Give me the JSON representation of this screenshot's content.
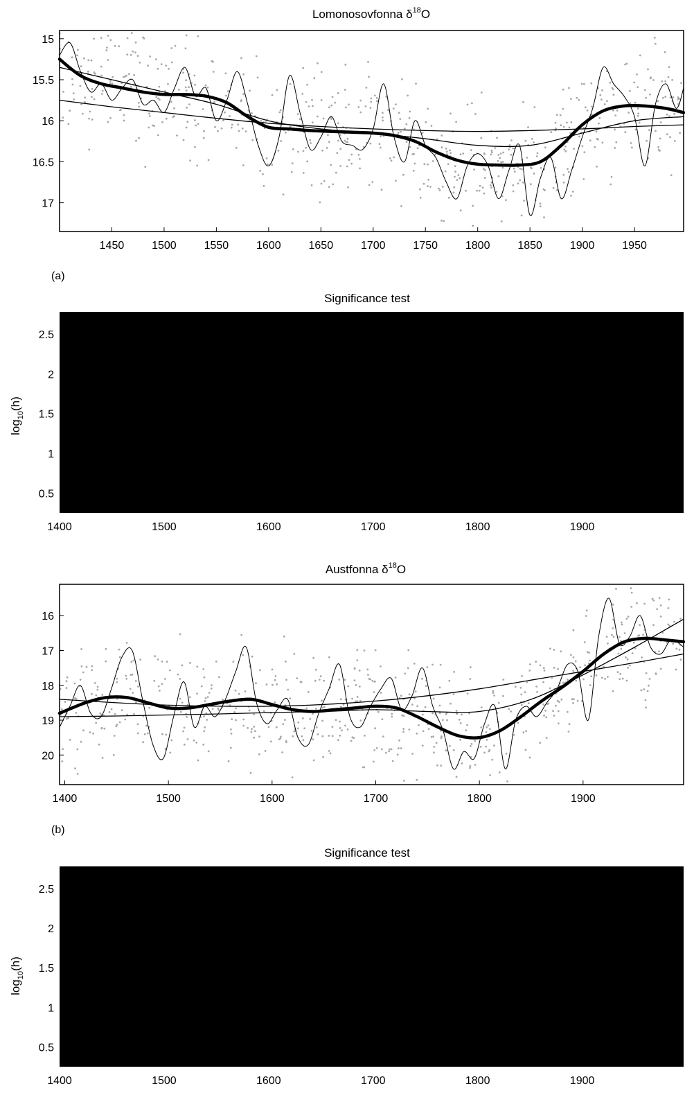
{
  "chart_data": [
    {
      "type": "scatter",
      "title": "Lomonosovfonna δ",
      "title_sup": "18",
      "title_suffix": "O",
      "xlim": [
        1400,
        1997
      ],
      "ylim": [
        17.35,
        14.9
      ],
      "y_reversed": true,
      "xticks": [
        1450,
        1500,
        1550,
        1600,
        1650,
        1700,
        1750,
        1800,
        1850,
        1900,
        1950
      ],
      "yticks": [
        15,
        15.5,
        16,
        16.5,
        17
      ],
      "series": [
        {
          "style": "thick",
          "x": [
            1400,
            1420,
            1440,
            1460,
            1480,
            1500,
            1520,
            1540,
            1560,
            1580,
            1600,
            1620,
            1640,
            1660,
            1680,
            1700,
            1720,
            1740,
            1760,
            1780,
            1800,
            1820,
            1840,
            1860,
            1880,
            1900,
            1920,
            1940,
            1960,
            1980,
            1997
          ],
          "y": [
            15.25,
            15.45,
            15.55,
            15.6,
            15.65,
            15.68,
            15.68,
            15.7,
            15.78,
            15.95,
            16.08,
            16.1,
            16.12,
            16.13,
            16.14,
            16.15,
            16.18,
            16.25,
            16.38,
            16.48,
            16.53,
            16.54,
            16.54,
            16.5,
            16.3,
            16.05,
            15.88,
            15.82,
            15.82,
            15.85,
            15.9
          ]
        },
        {
          "style": "thin",
          "x": [
            1400,
            1450,
            1500,
            1550,
            1600,
            1650,
            1700,
            1750,
            1800,
            1850,
            1900,
            1950,
            1997
          ],
          "y": [
            15.35,
            15.5,
            15.65,
            15.8,
            16.0,
            16.1,
            16.15,
            16.22,
            16.3,
            16.3,
            16.15,
            16.0,
            15.95
          ]
        },
        {
          "style": "thin",
          "x": [
            1400,
            1450,
            1500,
            1550,
            1600,
            1650,
            1700,
            1750,
            1800,
            1850,
            1900,
            1950,
            1997
          ],
          "y": [
            15.75,
            15.83,
            15.9,
            15.97,
            16.03,
            16.07,
            16.1,
            16.12,
            16.13,
            16.12,
            16.1,
            16.07,
            16.05
          ]
        },
        {
          "style": "hairline",
          "x": [
            1400,
            1410,
            1420,
            1430,
            1440,
            1450,
            1460,
            1470,
            1480,
            1490,
            1500,
            1510,
            1520,
            1530,
            1540,
            1550,
            1560,
            1570,
            1580,
            1590,
            1600,
            1610,
            1620,
            1630,
            1640,
            1650,
            1660,
            1670,
            1680,
            1690,
            1700,
            1710,
            1720,
            1730,
            1740,
            1750,
            1760,
            1770,
            1780,
            1790,
            1800,
            1810,
            1820,
            1830,
            1840,
            1850,
            1860,
            1870,
            1880,
            1890,
            1900,
            1910,
            1920,
            1930,
            1940,
            1950,
            1960,
            1970,
            1980,
            1990,
            1997
          ],
          "y": [
            15.2,
            15.05,
            15.4,
            15.65,
            15.55,
            15.75,
            15.6,
            15.5,
            15.8,
            15.75,
            15.9,
            15.6,
            15.35,
            15.7,
            15.6,
            16.0,
            15.75,
            15.4,
            15.8,
            16.3,
            16.55,
            16.2,
            15.45,
            15.9,
            16.35,
            16.2,
            15.95,
            16.25,
            16.3,
            16.35,
            16.1,
            15.55,
            16.2,
            16.5,
            16.0,
            16.3,
            16.45,
            16.75,
            16.95,
            16.55,
            16.4,
            16.55,
            16.95,
            16.6,
            16.3,
            17.15,
            16.7,
            16.45,
            16.95,
            16.6,
            16.2,
            15.85,
            15.35,
            15.55,
            15.7,
            15.95,
            16.55,
            15.8,
            15.55,
            15.85,
            15.6
          ]
        }
      ]
    },
    {
      "type": "heatmap",
      "label": "(a)",
      "title": "Significance test",
      "ylabel": "log",
      "ylabel_sub": "10",
      "ylabel_suffix": "(h)",
      "xlim": [
        1400,
        1997
      ],
      "ylim": [
        0.25,
        2.78
      ],
      "xticks": [
        1400,
        1500,
        1600,
        1700,
        1800,
        1900
      ],
      "yticks": [
        0.5,
        1,
        1.5,
        2,
        2.5
      ]
    },
    {
      "type": "scatter",
      "title": "Austfonna δ",
      "title_sup": "18",
      "title_suffix": "O",
      "xlim": [
        1395,
        1997
      ],
      "ylim": [
        20.85,
        15.1
      ],
      "y_reversed": true,
      "xticks": [
        1400,
        1500,
        1600,
        1700,
        1800,
        1900
      ],
      "yticks": [
        16,
        17,
        18,
        19,
        20
      ],
      "series": [
        {
          "style": "thick",
          "x": [
            1395,
            1420,
            1440,
            1460,
            1480,
            1500,
            1520,
            1540,
            1560,
            1580,
            1600,
            1620,
            1640,
            1660,
            1680,
            1700,
            1720,
            1740,
            1760,
            1780,
            1800,
            1820,
            1840,
            1860,
            1880,
            1900,
            1920,
            1940,
            1960,
            1980,
            1997
          ],
          "y": [
            18.8,
            18.5,
            18.35,
            18.35,
            18.5,
            18.65,
            18.65,
            18.55,
            18.45,
            18.4,
            18.55,
            18.7,
            18.75,
            18.7,
            18.65,
            18.6,
            18.65,
            18.9,
            19.2,
            19.45,
            19.5,
            19.3,
            18.9,
            18.45,
            18.05,
            17.6,
            17.1,
            16.75,
            16.65,
            16.7,
            16.75
          ]
        },
        {
          "style": "thin",
          "x": [
            1395,
            1450,
            1500,
            1550,
            1600,
            1650,
            1700,
            1750,
            1800,
            1850,
            1900,
            1950,
            1997
          ],
          "y": [
            18.9,
            18.88,
            18.85,
            18.82,
            18.78,
            18.75,
            18.7,
            18.75,
            18.75,
            18.4,
            17.7,
            16.9,
            16.1
          ]
        },
        {
          "style": "thin",
          "x": [
            1395,
            1450,
            1500,
            1550,
            1600,
            1650,
            1700,
            1750,
            1800,
            1850,
            1900,
            1950,
            1997
          ],
          "y": [
            18.4,
            18.5,
            18.57,
            18.6,
            18.6,
            18.55,
            18.45,
            18.3,
            18.1,
            17.85,
            17.6,
            17.35,
            17.1
          ]
        },
        {
          "style": "hairline",
          "x": [
            1395,
            1405,
            1415,
            1425,
            1435,
            1445,
            1455,
            1465,
            1475,
            1485,
            1495,
            1505,
            1515,
            1525,
            1535,
            1545,
            1555,
            1565,
            1575,
            1585,
            1595,
            1605,
            1615,
            1625,
            1635,
            1645,
            1655,
            1665,
            1675,
            1685,
            1695,
            1705,
            1715,
            1725,
            1735,
            1745,
            1755,
            1765,
            1775,
            1785,
            1795,
            1805,
            1815,
            1825,
            1835,
            1845,
            1855,
            1865,
            1875,
            1885,
            1895,
            1905,
            1915,
            1925,
            1935,
            1945,
            1955,
            1965,
            1975,
            1985,
            1997
          ],
          "y": [
            19.2,
            18.6,
            18.0,
            18.8,
            18.9,
            18.1,
            17.2,
            17.0,
            18.4,
            19.7,
            20.1,
            18.9,
            17.9,
            19.2,
            18.6,
            18.9,
            18.4,
            17.6,
            16.9,
            18.5,
            19.1,
            18.7,
            18.4,
            19.5,
            19.7,
            18.8,
            18.1,
            17.4,
            18.9,
            19.2,
            18.6,
            18.1,
            17.8,
            18.7,
            18.3,
            17.5,
            18.6,
            19.3,
            20.4,
            19.9,
            20.1,
            19.1,
            18.6,
            20.4,
            19.0,
            18.6,
            18.9,
            18.5,
            18.1,
            17.4,
            17.6,
            19.0,
            16.6,
            15.5,
            16.8,
            16.6,
            16.0,
            16.9,
            17.1,
            16.7,
            16.9
          ]
        }
      ]
    },
    {
      "type": "heatmap",
      "label": "(b)",
      "title": "Significance test",
      "ylabel": "log",
      "ylabel_sub": "10",
      "ylabel_suffix": "(h)",
      "xlim": [
        1400,
        1997
      ],
      "ylim": [
        0.25,
        2.78
      ],
      "xticks": [
        1400,
        1500,
        1600,
        1700,
        1800,
        1900
      ],
      "yticks": [
        0.5,
        1,
        1.5,
        2,
        2.5
      ]
    }
  ],
  "colors": {
    "ink": "#000000",
    "scatter": "#a8a8a8",
    "heat": "#000000"
  }
}
